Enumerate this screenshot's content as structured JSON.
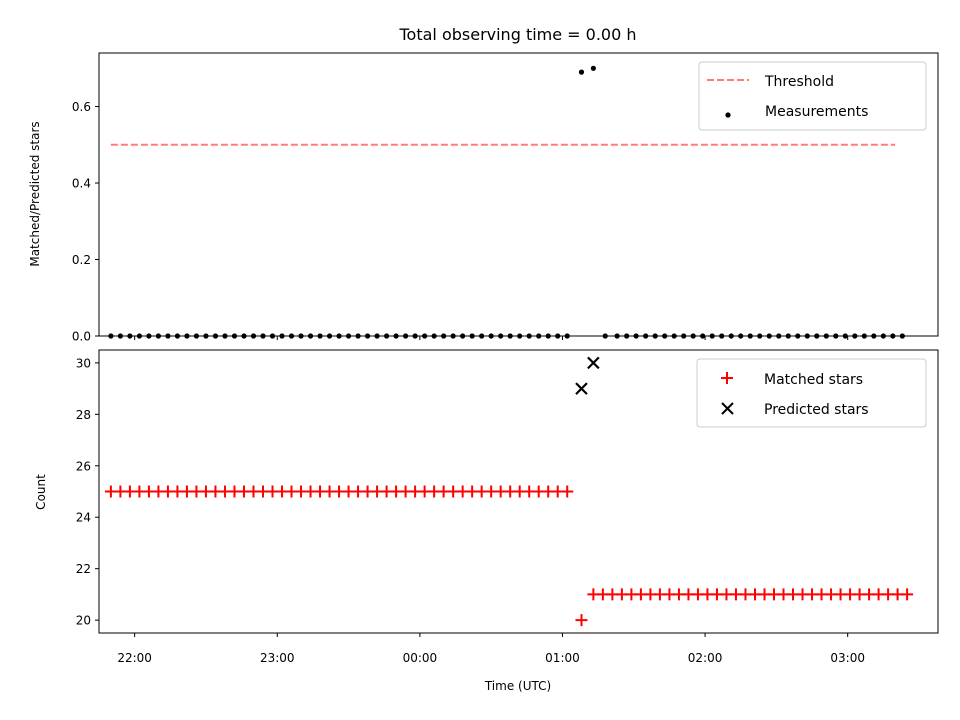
{
  "figure": {
    "title": "Total observing time = 0.00 h",
    "xlabel": "Time (UTC)",
    "x_tick_labels": [
      "22:00",
      "23:00",
      "00:00",
      "01:00",
      "02:00",
      "03:00"
    ]
  },
  "colors": {
    "threshold": "#ff7b7b",
    "measurements": "#000000",
    "matched": "#ff0000",
    "predicted": "#000000"
  },
  "chart_data": [
    {
      "type": "scatter",
      "ylabel": "Matched/Predicted stars",
      "xlim": [
        "21:45",
        "03:38"
      ],
      "ylim": [
        0,
        0.74
      ],
      "y_ticks": [
        0,
        0.2,
        0.4,
        0.6
      ],
      "y_tick_labels": [
        "0.0",
        "0.2",
        "0.4",
        "0.6"
      ],
      "grid": false,
      "legend_position": "top-right",
      "series": [
        {
          "name": "Threshold",
          "type": "line",
          "style": "dashed",
          "x": [
            "21:50",
            "03:20"
          ],
          "y": [
            0.5,
            0.5
          ]
        },
        {
          "name": "Measurements",
          "type": "scatter",
          "x": [
            "21:50",
            "21:54",
            "21:58",
            "22:02",
            "22:06",
            "22:10",
            "22:14",
            "22:18",
            "22:22",
            "22:26",
            "22:30",
            "22:34",
            "22:38",
            "22:42",
            "22:46",
            "22:50",
            "22:54",
            "22:58",
            "23:02",
            "23:06",
            "23:10",
            "23:14",
            "23:18",
            "23:22",
            "23:26",
            "23:30",
            "23:34",
            "23:38",
            "23:42",
            "23:46",
            "23:50",
            "23:54",
            "23:58",
            "00:02",
            "00:06",
            "00:10",
            "00:14",
            "00:18",
            "00:22",
            "00:26",
            "00:30",
            "00:34",
            "00:38",
            "00:42",
            "00:46",
            "00:50",
            "00:54",
            "00:58",
            "01:02",
            "01:08",
            "01:13",
            "01:18",
            "01:23",
            "01:27",
            "01:31",
            "01:35",
            "01:39",
            "01:43",
            "01:47",
            "01:51",
            "01:55",
            "01:59",
            "02:03",
            "02:07",
            "02:11",
            "02:15",
            "02:19",
            "02:23",
            "02:27",
            "02:31",
            "02:35",
            "02:39",
            "02:43",
            "02:47",
            "02:51",
            "02:55",
            "02:59",
            "03:03",
            "03:07",
            "03:11",
            "03:15",
            "03:19",
            "03:23"
          ],
          "y": [
            0,
            0,
            0,
            0,
            0,
            0,
            0,
            0,
            0,
            0,
            0,
            0,
            0,
            0,
            0,
            0,
            0,
            0,
            0,
            0,
            0,
            0,
            0,
            0,
            0,
            0,
            0,
            0,
            0,
            0,
            0,
            0,
            0,
            0,
            0,
            0,
            0,
            0,
            0,
            0,
            0,
            0,
            0,
            0,
            0,
            0,
            0,
            0,
            0,
            0.69,
            0.7,
            0,
            0,
            0,
            0,
            0,
            0,
            0,
            0,
            0,
            0,
            0,
            0,
            0,
            0,
            0,
            0,
            0,
            0,
            0,
            0,
            0,
            0,
            0,
            0,
            0,
            0,
            0,
            0,
            0,
            0,
            0,
            0
          ]
        }
      ]
    },
    {
      "type": "scatter",
      "ylabel": "Count",
      "xlabel": "Time (UTC)",
      "xlim": [
        "21:45",
        "03:38"
      ],
      "ylim": [
        19.5,
        30.5
      ],
      "y_ticks": [
        20,
        22,
        24,
        26,
        28,
        30
      ],
      "y_tick_labels": [
        "20",
        "22",
        "24",
        "26",
        "28",
        "30"
      ],
      "grid": false,
      "legend_position": "top-right",
      "series": [
        {
          "name": "Matched stars",
          "marker": "plus",
          "x": [
            "21:50",
            "21:54",
            "21:58",
            "22:02",
            "22:06",
            "22:10",
            "22:14",
            "22:18",
            "22:22",
            "22:26",
            "22:30",
            "22:34",
            "22:38",
            "22:42",
            "22:46",
            "22:50",
            "22:54",
            "22:58",
            "23:02",
            "23:06",
            "23:10",
            "23:14",
            "23:18",
            "23:22",
            "23:26",
            "23:30",
            "23:34",
            "23:38",
            "23:42",
            "23:46",
            "23:50",
            "23:54",
            "23:58",
            "00:02",
            "00:06",
            "00:10",
            "00:14",
            "00:18",
            "00:22",
            "00:26",
            "00:30",
            "00:34",
            "00:38",
            "00:42",
            "00:46",
            "00:50",
            "00:54",
            "00:58",
            "01:02",
            "01:08",
            "01:13",
            "01:17",
            "01:21",
            "01:25",
            "01:29",
            "01:33",
            "01:37",
            "01:41",
            "01:45",
            "01:49",
            "01:53",
            "01:57",
            "02:01",
            "02:05",
            "02:09",
            "02:13",
            "02:17",
            "02:21",
            "02:25",
            "02:29",
            "02:33",
            "02:37",
            "02:41",
            "02:45",
            "02:49",
            "02:53",
            "02:57",
            "03:01",
            "03:05",
            "03:09",
            "03:13",
            "03:17",
            "03:21",
            "03:25"
          ],
          "y": [
            25,
            25,
            25,
            25,
            25,
            25,
            25,
            25,
            25,
            25,
            25,
            25,
            25,
            25,
            25,
            25,
            25,
            25,
            25,
            25,
            25,
            25,
            25,
            25,
            25,
            25,
            25,
            25,
            25,
            25,
            25,
            25,
            25,
            25,
            25,
            25,
            25,
            25,
            25,
            25,
            25,
            25,
            25,
            25,
            25,
            25,
            25,
            25,
            25,
            20,
            21,
            21,
            21,
            21,
            21,
            21,
            21,
            21,
            21,
            21,
            21,
            21,
            21,
            21,
            21,
            21,
            21,
            21,
            21,
            21,
            21,
            21,
            21,
            21,
            21,
            21,
            21,
            21,
            21,
            21,
            21,
            21,
            21,
            21
          ]
        },
        {
          "name": "Predicted stars",
          "marker": "x",
          "x": [
            "01:08",
            "01:13"
          ],
          "y": [
            29,
            30
          ]
        }
      ]
    }
  ]
}
